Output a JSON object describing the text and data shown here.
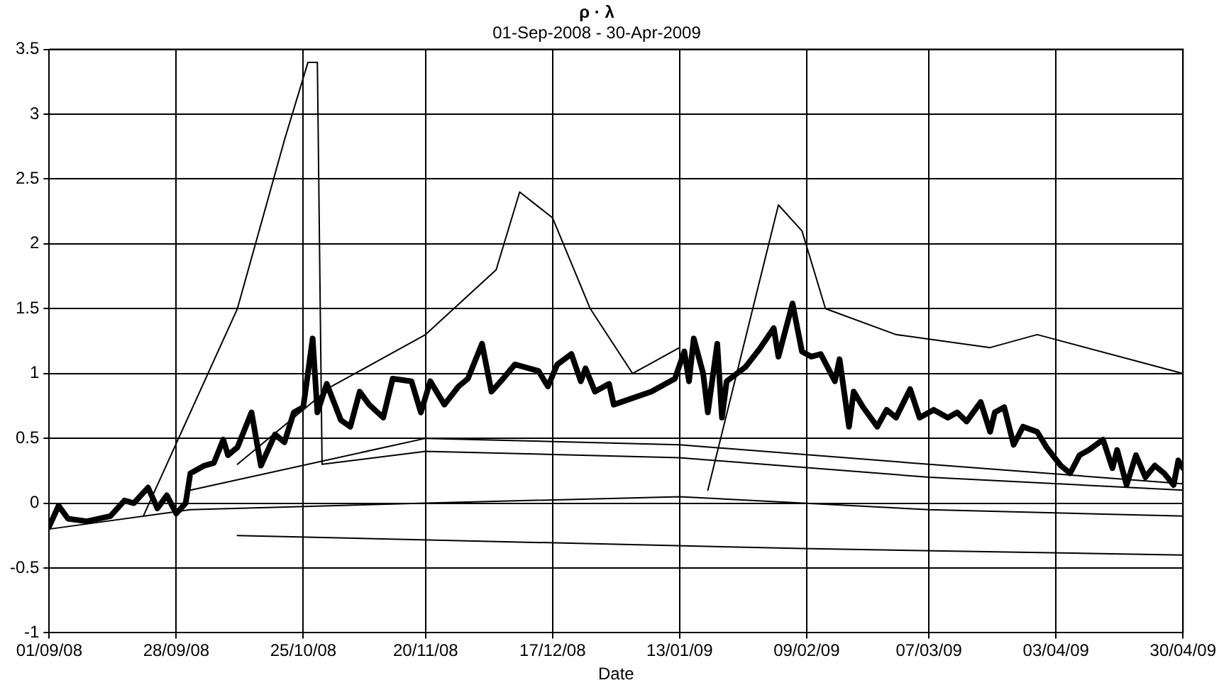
{
  "chart_data": {
    "type": "line",
    "title": "ρ · λ",
    "subtitle": "01-Sep-2008 - 30-Apr-2009",
    "xlabel": "Date",
    "xlim": [
      "2008-09-01",
      "2009-04-30"
    ],
    "xticks": [
      {
        "value": "2008-09-01",
        "label": "01/09/08"
      },
      {
        "value": "2008-09-28",
        "label": "28/09/08"
      },
      {
        "value": "2008-10-25",
        "label": "25/10/08"
      },
      {
        "value": "2008-11-20",
        "label": "20/11/08"
      },
      {
        "value": "2008-12-17",
        "label": "17/12/08"
      },
      {
        "value": "2009-01-13",
        "label": "13/01/09"
      },
      {
        "value": "2009-02-09",
        "label": "09/02/09"
      },
      {
        "value": "2009-03-07",
        "label": "07/03/09"
      },
      {
        "value": "2009-04-03",
        "label": "03/04/09"
      },
      {
        "value": "2009-04-30",
        "label": "30/04/09"
      }
    ],
    "ylim": [
      -1,
      3.5
    ],
    "yticks": [
      -1,
      -0.5,
      0,
      0.5,
      1,
      1.5,
      2,
      2.5,
      3,
      3.5
    ],
    "grid": true,
    "legend": false,
    "marker": "none",
    "line_style": "solid",
    "series": [
      {
        "color": "#000000",
        "x": [
          "2008-09-01",
          "2008-09-03",
          "2008-09-05",
          "2008-09-09",
          "2008-09-14",
          "2008-09-17",
          "2008-09-19",
          "2008-09-22",
          "2008-09-24",
          "2008-09-26",
          "2008-09-28",
          "2008-09-30",
          "2008-10-01",
          "2008-10-04",
          "2008-10-06",
          "2008-10-08",
          "2008-10-09",
          "2008-10-11",
          "2008-10-14",
          "2008-10-16",
          "2008-10-19",
          "2008-10-21",
          "2008-10-23",
          "2008-10-25",
          "2008-10-27",
          "2008-10-28",
          "2008-10-30",
          "2008-11-02",
          "2008-11-04",
          "2008-11-06",
          "2008-11-08",
          "2008-11-11",
          "2008-11-13",
          "2008-11-17",
          "2008-11-19",
          "2008-11-21",
          "2008-11-24",
          "2008-11-27",
          "2008-11-29",
          "2008-12-02",
          "2008-12-04",
          "2008-12-06",
          "2008-12-09",
          "2008-12-11",
          "2008-12-14",
          "2008-12-16",
          "2008-12-18",
          "2008-12-21",
          "2008-12-23",
          "2008-12-24",
          "2008-12-26",
          "2008-12-29",
          "2008-12-30",
          "2009-01-07",
          "2009-01-12",
          "2009-01-14",
          "2009-01-15",
          "2009-01-16",
          "2009-01-18",
          "2009-01-19",
          "2009-01-21",
          "2009-01-22",
          "2009-01-23",
          "2009-01-27",
          "2009-01-30",
          "2009-02-02",
          "2009-02-03",
          "2009-02-06",
          "2009-02-08",
          "2009-02-10",
          "2009-02-12",
          "2009-02-15",
          "2009-02-16",
          "2009-02-18",
          "2009-02-19",
          "2009-02-21",
          "2009-02-24",
          "2009-02-26",
          "2009-02-28",
          "2009-03-03",
          "2009-03-05",
          "2009-03-08",
          "2009-03-11",
          "2009-03-13",
          "2009-03-15",
          "2009-03-18",
          "2009-03-20",
          "2009-03-21",
          "2009-03-23",
          "2009-03-25",
          "2009-03-27",
          "2009-03-30",
          "2009-04-01",
          "2009-04-04",
          "2009-04-06",
          "2009-04-08",
          "2009-04-10",
          "2009-04-13",
          "2009-04-15",
          "2009-04-16",
          "2009-04-18",
          "2009-04-20",
          "2009-04-22",
          "2009-04-24",
          "2009-04-26",
          "2009-04-28",
          "2009-04-29",
          "2009-04-30"
        ],
        "values": [
          -0.18,
          -0.02,
          -0.12,
          -0.14,
          -0.1,
          0.02,
          0,
          0.12,
          -0.04,
          0.06,
          -0.08,
          0,
          0.23,
          0.29,
          0.31,
          0.49,
          0.37,
          0.43,
          0.7,
          0.29,
          0.53,
          0.47,
          0.7,
          0.74,
          1.27,
          0.7,
          0.92,
          0.64,
          0.59,
          0.86,
          0.76,
          0.66,
          0.96,
          0.94,
          0.7,
          0.94,
          0.76,
          0.9,
          0.96,
          1.23,
          0.86,
          0.94,
          1.07,
          1.05,
          1.02,
          0.9,
          1.07,
          1.15,
          0.94,
          1.04,
          0.86,
          0.92,
          0.76,
          0.86,
          0.96,
          1.17,
          0.94,
          1.27,
          1.0,
          0.7,
          1.23,
          0.66,
          0.94,
          1.05,
          1.19,
          1.35,
          1.13,
          1.54,
          1.17,
          1.13,
          1.15,
          0.94,
          1.11,
          0.59,
          0.86,
          0.74,
          0.59,
          0.72,
          0.66,
          0.88,
          0.66,
          0.72,
          0.66,
          0.7,
          0.63,
          0.78,
          0.55,
          0.7,
          0.74,
          0.45,
          0.59,
          0.55,
          0.43,
          0.29,
          0.23,
          0.37,
          0.41,
          0.49,
          0.27,
          0.41,
          0.14,
          0.37,
          0.2,
          0.29,
          0.23,
          0.14,
          0.33,
          0.27
        ]
      },
      {
        "color": "#000000",
        "x": [
          "2008-09-01",
          "2008-10-01",
          "2008-11-20",
          "2009-01-13",
          "2009-03-07",
          "2009-04-30"
        ],
        "values": [
          -0.2,
          -0.05,
          0,
          0.05,
          -0.05,
          -0.1
        ]
      },
      {
        "color": "#000000",
        "x": [
          "2008-09-21",
          "2008-10-11",
          "2008-10-21",
          "2008-10-26",
          "2008-10-28",
          "2008-10-29",
          "2008-11-20",
          "2009-01-13",
          "2009-03-07",
          "2009-04-30"
        ],
        "values": [
          -0.1,
          1.5,
          2.8,
          3.4,
          3.4,
          0.3,
          0.4,
          0.35,
          0.2,
          0.1
        ]
      },
      {
        "color": "#000000",
        "x": [
          "2008-10-11",
          "2008-10-31",
          "2008-11-20",
          "2008-12-05",
          "2008-12-10",
          "2008-12-17",
          "2008-12-25",
          "2009-01-03",
          "2009-01-13"
        ],
        "values": [
          0.3,
          0.9,
          1.3,
          1.8,
          2.4,
          2.2,
          1.5,
          1.0,
          1.2
        ]
      },
      {
        "color": "#000000",
        "x": [
          "2009-01-19",
          "2009-02-03",
          "2009-02-08",
          "2009-02-13",
          "2009-02-28",
          "2009-03-20",
          "2009-03-30",
          "2009-04-30"
        ],
        "values": [
          0.1,
          2.3,
          2.1,
          1.5,
          1.3,
          1.2,
          1.3,
          1.0
        ]
      },
      {
        "color": "#000000",
        "x": [
          "2008-10-01",
          "2008-11-20",
          "2009-01-13",
          "2009-03-07",
          "2009-04-30"
        ],
        "values": [
          0.1,
          0.5,
          0.45,
          0.3,
          0.15
        ]
      },
      {
        "color": "#000000",
        "x": [
          "2008-10-11",
          "2008-12-10",
          "2009-02-08",
          "2009-04-30"
        ],
        "values": [
          -0.25,
          -0.3,
          -0.35,
          -0.4
        ]
      }
    ]
  }
}
